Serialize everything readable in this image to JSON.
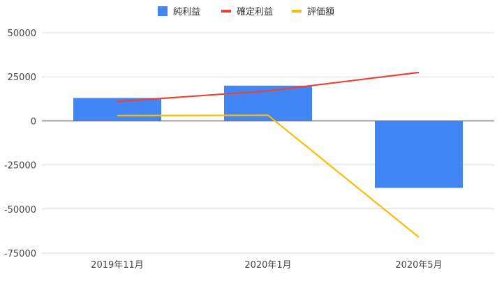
{
  "chart_data": {
    "type": "bar",
    "title": "",
    "xlabel": "",
    "ylabel": "",
    "categories": [
      "2019年11月",
      "2020年1月",
      "2020年5月"
    ],
    "ylim": [
      -75000,
      50000
    ],
    "yticks": [
      50000,
      25000,
      0,
      -25000,
      -50000,
      -75000
    ],
    "ytick_labels": [
      "50000",
      "25000",
      "0",
      "-25000",
      "-50000",
      "-75000"
    ],
    "grid": true,
    "legend_position": "top",
    "series": [
      {
        "name": "純利益",
        "type": "bar",
        "color": "#4285f4",
        "values": [
          13000,
          20000,
          -38000
        ]
      },
      {
        "name": "確定利益",
        "type": "line",
        "color": "#ea4335",
        "values": [
          11000,
          17000,
          27500
        ]
      },
      {
        "name": "評価額",
        "type": "line",
        "color": "#fbbc04",
        "values": [
          3000,
          3200,
          -66000
        ]
      }
    ]
  }
}
